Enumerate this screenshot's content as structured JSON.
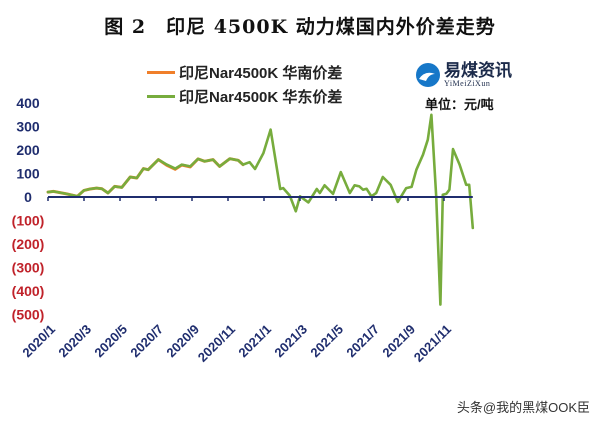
{
  "chart_data": {
    "type": "line",
    "title": "图 2　印尼 4500K 动力煤国内外价差走势",
    "unit": "单位：元/吨",
    "xlabel": "",
    "ylabel": "",
    "ylim": [
      -500,
      400
    ],
    "yticks": [
      400,
      300,
      200,
      100,
      0,
      -100,
      -200,
      -300,
      -400,
      -500
    ],
    "ytick_labels": [
      "400",
      "300",
      "200",
      "100",
      "0",
      "(100)",
      "(200)",
      "(300)",
      "(400)",
      "(500)"
    ],
    "xticks": [
      "2020/1",
      "2020/3",
      "2020/5",
      "2020/7",
      "2020/9",
      "2020/11",
      "2021/1",
      "2021/3",
      "2021/5",
      "2021/7",
      "2021/9",
      "2021/11"
    ],
    "grid": false,
    "legend_placement": "top",
    "series": [
      {
        "name": "印尼Nar4500K 华南价差",
        "color": "#f07f2a",
        "points": [
          [
            "2020-01-01",
            21
          ],
          [
            "2020-01-10",
            24
          ],
          [
            "2020-02-02",
            13
          ],
          [
            "2020-02-20",
            3
          ],
          [
            "2020-03-01",
            28
          ],
          [
            "2020-03-11",
            34
          ],
          [
            "2020-03-22",
            38
          ],
          [
            "2020-03-31",
            35
          ],
          [
            "2020-04-11",
            17
          ],
          [
            "2020-04-22",
            45
          ],
          [
            "2020-05-04",
            41
          ],
          [
            "2020-05-18",
            85
          ],
          [
            "2020-05-29",
            81
          ],
          [
            "2020-06-10",
            121
          ],
          [
            "2020-06-18",
            116
          ],
          [
            "2020-07-05",
            159
          ],
          [
            "2020-07-19",
            135
          ],
          [
            "2020-08-03",
            118
          ],
          [
            "2020-08-14",
            136
          ],
          [
            "2020-08-28",
            128
          ],
          [
            "2020-09-11",
            162
          ],
          [
            "2020-09-22",
            152
          ],
          [
            "2020-10-06",
            159
          ],
          [
            "2020-10-17",
            130
          ],
          [
            "2020-11-04",
            163
          ],
          [
            "2020-11-18",
            156
          ],
          [
            "2020-11-26",
            138
          ]
        ]
      },
      {
        "name": "印尼Nar4500K 华东价差",
        "color": "#77ac3d",
        "points": [
          [
            "2020-01-01",
            21
          ],
          [
            "2020-01-10",
            24
          ],
          [
            "2020-02-02",
            13
          ],
          [
            "2020-02-20",
            3
          ],
          [
            "2020-03-01",
            28
          ],
          [
            "2020-03-11",
            34
          ],
          [
            "2020-03-22",
            38
          ],
          [
            "2020-03-31",
            35
          ],
          [
            "2020-04-11",
            17
          ],
          [
            "2020-04-22",
            45
          ],
          [
            "2020-05-04",
            41
          ],
          [
            "2020-05-18",
            85
          ],
          [
            "2020-05-29",
            81
          ],
          [
            "2020-06-10",
            121
          ],
          [
            "2020-06-18",
            116
          ],
          [
            "2020-07-05",
            159
          ],
          [
            "2020-07-19",
            138
          ],
          [
            "2020-08-03",
            121
          ],
          [
            "2020-08-14",
            138
          ],
          [
            "2020-08-28",
            130
          ],
          [
            "2020-09-11",
            162
          ],
          [
            "2020-09-22",
            152
          ],
          [
            "2020-10-06",
            159
          ],
          [
            "2020-10-17",
            130
          ],
          [
            "2020-11-04",
            163
          ],
          [
            "2020-11-18",
            156
          ],
          [
            "2020-11-26",
            138
          ],
          [
            "2020-12-07",
            148
          ],
          [
            "2020-12-16",
            119
          ],
          [
            "2020-12-30",
            187
          ],
          [
            "2021-01-12",
            287
          ],
          [
            "2021-01-28",
            34
          ],
          [
            "2021-02-03",
            38
          ],
          [
            "2021-02-14",
            6
          ],
          [
            "2021-02-24",
            -61
          ],
          [
            "2021-03-01",
            3
          ],
          [
            "2021-03-15",
            -23
          ],
          [
            "2021-03-29",
            34
          ],
          [
            "2021-04-04",
            17
          ],
          [
            "2021-04-12",
            50
          ],
          [
            "2021-04-26",
            13
          ],
          [
            "2021-05-09",
            106
          ],
          [
            "2021-05-24",
            17
          ],
          [
            "2021-06-02",
            50
          ],
          [
            "2021-06-10",
            45
          ],
          [
            "2021-06-16",
            31
          ],
          [
            "2021-06-22",
            35
          ],
          [
            "2021-06-30",
            3
          ],
          [
            "2021-07-08",
            17
          ],
          [
            "2021-07-19",
            85
          ],
          [
            "2021-08-02",
            52
          ],
          [
            "2021-08-14",
            -21
          ],
          [
            "2021-08-28",
            38
          ],
          [
            "2021-09-07",
            43
          ],
          [
            "2021-09-15",
            116
          ],
          [
            "2021-09-26",
            180
          ],
          [
            "2021-10-04",
            244
          ],
          [
            "2021-10-10",
            350
          ],
          [
            "2021-10-18",
            3
          ],
          [
            "2021-10-25",
            -458
          ],
          [
            "2021-10-29",
            10
          ],
          [
            "2021-11-05",
            14
          ],
          [
            "2021-11-10",
            31
          ],
          [
            "2021-11-16",
            204
          ],
          [
            "2021-11-27",
            138
          ],
          [
            "2021-12-08",
            52
          ],
          [
            "2021-12-13",
            52
          ],
          [
            "2021-12-19",
            -132
          ]
        ]
      }
    ],
    "colors": {
      "axis": "#1f2d6e",
      "positive_tick": "#1f2d6e",
      "negative_tick": "#c0222a",
      "logo": "#1677c8"
    }
  },
  "logo": {
    "name": "易煤资讯",
    "sub": "YiMeiZiXun"
  },
  "watermark": "头条@我的黑煤OOK臣"
}
